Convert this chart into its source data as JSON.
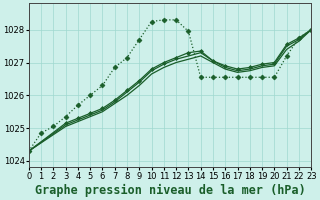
{
  "bg_color": "#cef0ea",
  "grid_color": "#a0d8cf",
  "line_color": "#1a5e2a",
  "title": "Graphe pression niveau de la mer (hPa)",
  "xlim": [
    0,
    23
  ],
  "ylim": [
    1023.8,
    1028.8
  ],
  "xticks": [
    0,
    1,
    2,
    3,
    4,
    5,
    6,
    7,
    8,
    9,
    10,
    11,
    12,
    13,
    14,
    15,
    16,
    17,
    18,
    19,
    20,
    21,
    22,
    23
  ],
  "yticks": [
    1024,
    1025,
    1026,
    1027,
    1028
  ],
  "series": [
    {
      "x": [
        0,
        1,
        2,
        3,
        4,
        5,
        6,
        7,
        8,
        9,
        10,
        11,
        12,
        13,
        14,
        15,
        16,
        17,
        18,
        19,
        20,
        21,
        22,
        23
      ],
      "y": [
        1024.3,
        1024.85,
        1025.05,
        1025.35,
        1025.7,
        1026.0,
        1026.3,
        1026.85,
        1027.15,
        1027.7,
        1028.25,
        1028.3,
        1028.3,
        1027.95,
        1026.55,
        1026.55,
        1026.55,
        1026.55,
        1026.55,
        1026.55,
        1026.55,
        1027.2,
        1027.75,
        1028.0
      ],
      "marker": "D",
      "markersize": 2.5,
      "linewidth": 0.9,
      "linestyle": ":"
    },
    {
      "x": [
        0,
        3,
        4,
        5,
        6,
        7,
        8,
        9,
        10,
        11,
        12,
        13,
        14,
        15,
        16,
        17,
        18,
        19,
        20,
        21,
        22,
        23
      ],
      "y": [
        1024.3,
        1025.05,
        1025.2,
        1025.35,
        1025.5,
        1025.75,
        1026.0,
        1026.3,
        1026.65,
        1026.85,
        1027.0,
        1027.1,
        1027.2,
        1027.0,
        1026.8,
        1026.7,
        1026.75,
        1026.85,
        1026.9,
        1027.4,
        1027.65,
        1028.0
      ],
      "marker": null,
      "markersize": 0,
      "linewidth": 0.9,
      "linestyle": "-"
    },
    {
      "x": [
        0,
        3,
        4,
        5,
        6,
        7,
        8,
        9,
        10,
        11,
        12,
        13,
        14,
        15,
        16,
        17,
        18,
        19,
        20,
        21,
        22,
        23
      ],
      "y": [
        1024.3,
        1025.1,
        1025.25,
        1025.4,
        1025.55,
        1025.8,
        1026.1,
        1026.4,
        1026.75,
        1026.95,
        1027.1,
        1027.2,
        1027.3,
        1027.05,
        1026.85,
        1026.75,
        1026.8,
        1026.9,
        1026.95,
        1027.5,
        1027.7,
        1028.0
      ],
      "marker": null,
      "markersize": 0,
      "linewidth": 0.9,
      "linestyle": "-"
    },
    {
      "x": [
        0,
        3,
        4,
        5,
        6,
        7,
        8,
        9,
        10,
        11,
        12,
        13,
        14,
        15,
        16,
        17,
        18,
        19,
        20,
        21,
        22,
        23
      ],
      "y": [
        1024.3,
        1025.15,
        1025.3,
        1025.45,
        1025.6,
        1025.85,
        1026.15,
        1026.45,
        1026.8,
        1027.0,
        1027.15,
        1027.3,
        1027.35,
        1027.05,
        1026.9,
        1026.8,
        1026.85,
        1026.95,
        1027.0,
        1027.55,
        1027.75,
        1028.0
      ],
      "marker": "D",
      "markersize": 2.0,
      "linewidth": 0.9,
      "linestyle": "-"
    }
  ],
  "title_fontsize": 8.5,
  "tick_fontsize": 6.0
}
